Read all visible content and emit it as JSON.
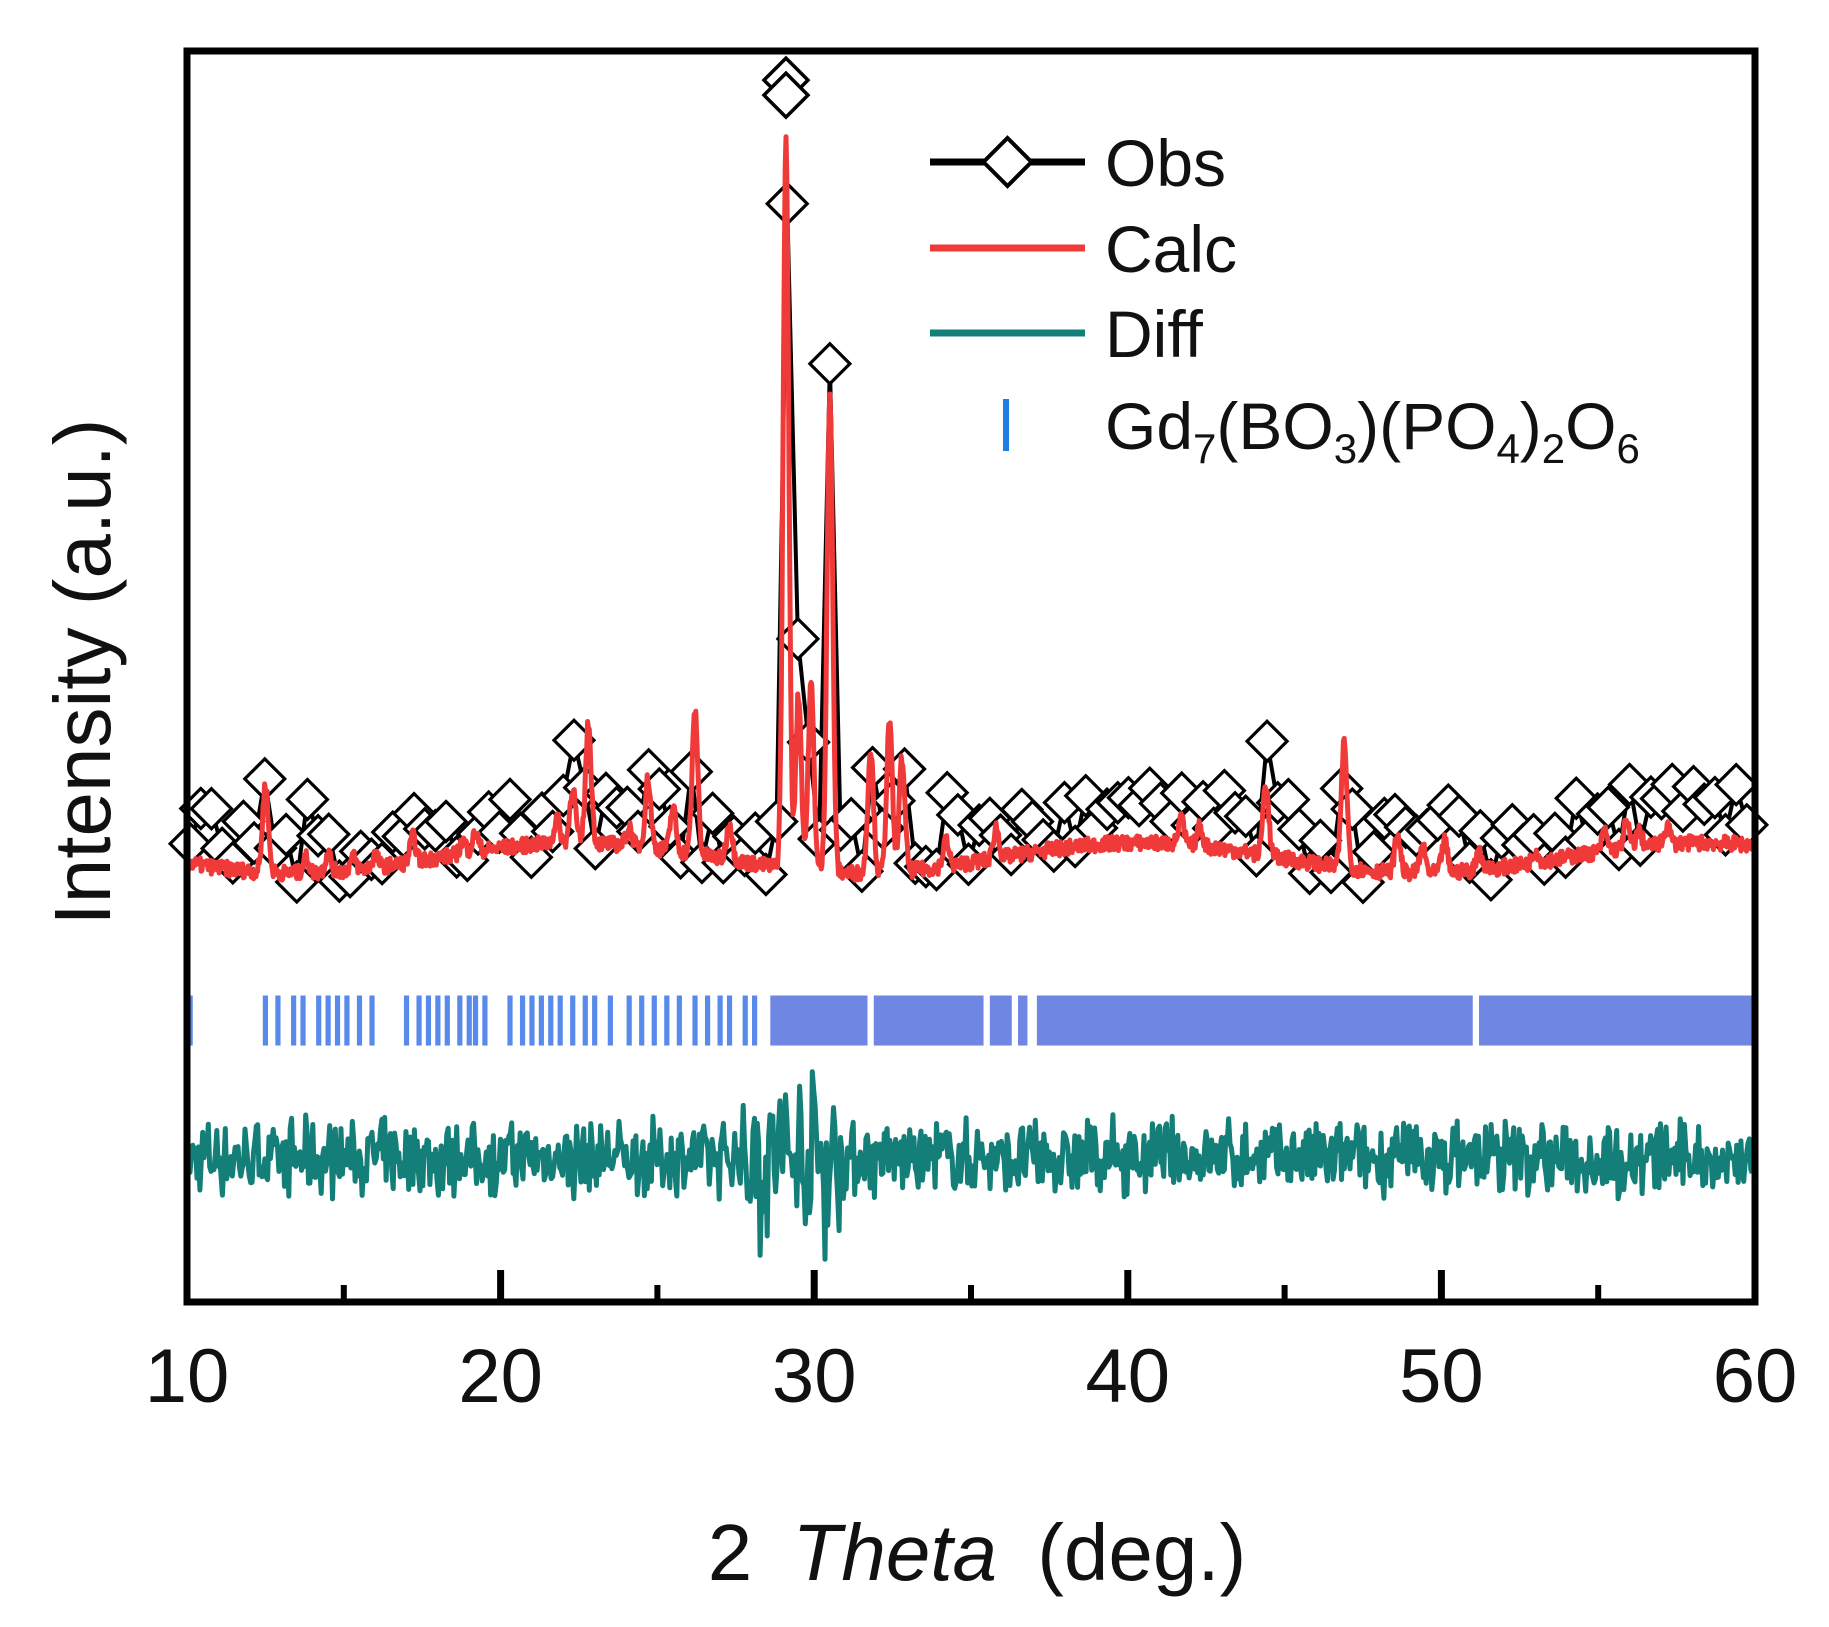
{
  "chart_data": {
    "type": "line",
    "title": "",
    "xlabel_prefix": "2",
    "xlabel_italic": "Theta",
    "xlabel_suffix": "(deg.)",
    "ylabel": "Intensity (a.u.)",
    "xlim": [
      10,
      60
    ],
    "ylim": [
      0,
      1
    ],
    "xticks_major": [
      10,
      20,
      30,
      40,
      50,
      60
    ],
    "xticks_minor": [
      15,
      25,
      35,
      45,
      55
    ],
    "yticks": [],
    "grid": false,
    "legend_position": "top-right",
    "legend": [
      {
        "label": "Obs",
        "kind": "line-diamond",
        "color": "#000000"
      },
      {
        "label": "Calc",
        "kind": "line",
        "color": "#f03a3a"
      },
      {
        "label": "Diff",
        "kind": "line",
        "color": "#147f78"
      },
      {
        "label_parts": [
          {
            "t": "Gd"
          },
          {
            "t": "7",
            "sub": true
          },
          {
            "t": "(BO"
          },
          {
            "t": "3",
            "sub": true
          },
          {
            "t": ")(PO"
          },
          {
            "t": "4",
            "sub": true
          },
          {
            "t": ")"
          },
          {
            "t": "2",
            "sub": true
          },
          {
            "t": "O"
          },
          {
            "t": "6",
            "sub": true
          }
        ],
        "label": "Gd7(BO3)(PO4)2O6",
        "kind": "tick",
        "color": "#1f7fe0"
      }
    ],
    "series": [
      {
        "name": "Calc",
        "color": "#f03a3a",
        "baseline": 0.355,
        "noise": 0.012,
        "peaks": [
          [
            12.5,
            0.07
          ],
          [
            13.8,
            0.012
          ],
          [
            14.5,
            0.015
          ],
          [
            15.3,
            0.01
          ],
          [
            16.0,
            0.01
          ],
          [
            17.2,
            0.02
          ],
          [
            18.8,
            0.01
          ],
          [
            19.2,
            0.015
          ],
          [
            21.8,
            0.02
          ],
          [
            22.3,
            0.045
          ],
          [
            22.8,
            0.095
          ],
          [
            24.1,
            0.015
          ],
          [
            24.7,
            0.055
          ],
          [
            25.5,
            0.035
          ],
          [
            26.2,
            0.115
          ],
          [
            27.3,
            0.03
          ],
          [
            29.1,
            0.58
          ],
          [
            29.5,
            0.14
          ],
          [
            29.9,
            0.15
          ],
          [
            30.5,
            0.38
          ],
          [
            31.8,
            0.1
          ],
          [
            32.4,
            0.12
          ],
          [
            32.8,
            0.09
          ],
          [
            34.2,
            0.02
          ],
          [
            35.8,
            0.025
          ],
          [
            41.7,
            0.02
          ],
          [
            42.3,
            0.015
          ],
          [
            44.4,
            0.058
          ],
          [
            46.9,
            0.1
          ],
          [
            48.6,
            0.03
          ],
          [
            49.4,
            0.02
          ],
          [
            50.1,
            0.025
          ],
          [
            51.2,
            0.015
          ],
          [
            53.0,
            0.01
          ],
          [
            55.2,
            0.015
          ],
          [
            55.9,
            0.02
          ],
          [
            56.3,
            0.012
          ],
          [
            57.2,
            0.015
          ]
        ]
      },
      {
        "name": "Obs",
        "color": "#000000",
        "marker": "diamond",
        "offset_above_calc": 0.018
      },
      {
        "name": "Diff",
        "color": "#147f78",
        "baseline": 0.115,
        "noise": 0.022
      }
    ],
    "reflection_ticks": {
      "name": "Gd7(BO3)(PO4)2O6",
      "color": "#3a75e6",
      "y_range": [
        0.205,
        0.245
      ],
      "positions": [
        10.1,
        12.5,
        12.9,
        13.4,
        13.7,
        14.2,
        14.5,
        14.8,
        15.1,
        15.5,
        15.9,
        17.0,
        17.4,
        17.7,
        18.0,
        18.3,
        18.7,
        19.0,
        19.2,
        19.5,
        20.3,
        20.7,
        21.0,
        21.3,
        21.6,
        21.9,
        22.3,
        22.7,
        23.0,
        23.5,
        24.1,
        24.5,
        24.9,
        25.3,
        25.7,
        26.2,
        26.6,
        27.0,
        27.3,
        27.8,
        28.1
      ],
      "dense_bands": [
        [
          28.6,
          31.7
        ],
        [
          31.9,
          35.4
        ],
        [
          35.6,
          36.3
        ],
        [
          36.5,
          36.8
        ],
        [
          37.1,
          51.0
        ],
        [
          51.2,
          60.0
        ]
      ]
    }
  }
}
